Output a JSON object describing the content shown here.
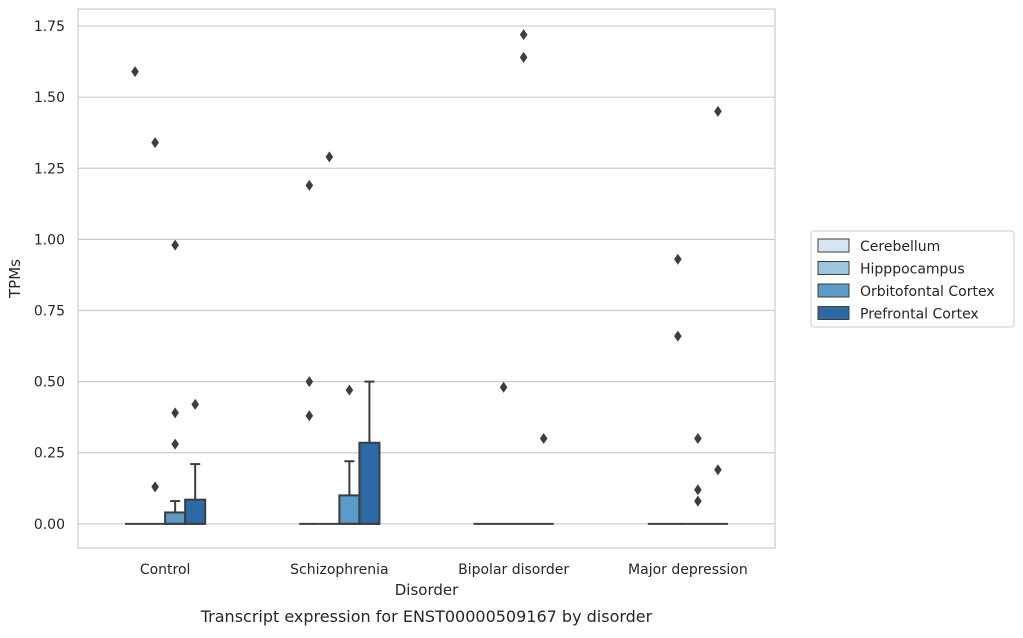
{
  "chart_data": {
    "type": "box",
    "xlabel": "Disorder",
    "ylabel": "TPMs",
    "caption": "Transcript expression for ENST00000509167 by disorder",
    "ylim": [
      -0.085,
      1.81
    ],
    "yticks": [
      "0.00",
      "0.25",
      "0.50",
      "0.75",
      "1.00",
      "1.25",
      "1.50",
      "1.75"
    ],
    "ytick_values": [
      0,
      0.25,
      0.5,
      0.75,
      1.0,
      1.25,
      1.5,
      1.75
    ],
    "grid": "horizontal",
    "legend_placement": "right",
    "categories": [
      "Control",
      "Schizophrenia",
      "Bipolar disorder",
      "Major depression"
    ],
    "series": [
      {
        "name": "Cerebellum",
        "color": "#d6e5f3",
        "boxes": [
          {
            "q1": 0,
            "median": 0,
            "q3": 0,
            "whisker_low": 0,
            "whisker_high": 0,
            "outliers": [
              1.59
            ]
          },
          {
            "q1": 0,
            "median": 0,
            "q3": 0,
            "whisker_low": 0,
            "whisker_high": 0,
            "outliers": [
              0.38,
              0.5,
              1.19
            ]
          },
          {
            "q1": 0,
            "median": 0,
            "q3": 0,
            "whisker_low": 0,
            "whisker_high": 0,
            "outliers": []
          },
          {
            "q1": 0,
            "median": 0,
            "q3": 0,
            "whisker_low": 0,
            "whisker_high": 0,
            "outliers": []
          }
        ]
      },
      {
        "name": "Hipppocampus",
        "color": "#9cc6df",
        "boxes": [
          {
            "q1": 0,
            "median": 0,
            "q3": 0,
            "whisker_low": 0,
            "whisker_high": 0,
            "outliers": [
              0.13,
              1.34
            ]
          },
          {
            "q1": 0,
            "median": 0,
            "q3": 0,
            "whisker_low": 0,
            "whisker_high": 0,
            "outliers": [
              1.29
            ]
          },
          {
            "q1": 0,
            "median": 0,
            "q3": 0,
            "whisker_low": 0,
            "whisker_high": 0,
            "outliers": [
              0.48
            ]
          },
          {
            "q1": 0,
            "median": 0,
            "q3": 0,
            "whisker_low": 0,
            "whisker_high": 0,
            "outliers": [
              0.66,
              0.93
            ]
          }
        ]
      },
      {
        "name": "Orbitofontal Cortex",
        "color": "#5a9bc7",
        "boxes": [
          {
            "q1": 0,
            "median": 0,
            "q3": 0.04,
            "whisker_low": 0,
            "whisker_high": 0.08,
            "outliers": [
              0.28,
              0.39,
              0.98
            ]
          },
          {
            "q1": 0,
            "median": 0,
            "q3": 0.1,
            "whisker_low": 0,
            "whisker_high": 0.22,
            "outliers": [
              0.47
            ]
          },
          {
            "q1": 0,
            "median": 0,
            "q3": 0,
            "whisker_low": 0,
            "whisker_high": 0,
            "outliers": [
              1.64,
              1.72
            ]
          },
          {
            "q1": 0,
            "median": 0,
            "q3": 0,
            "whisker_low": 0,
            "whisker_high": 0,
            "outliers": [
              0.08,
              0.12,
              0.3
            ]
          }
        ]
      },
      {
        "name": "Prefrontal Cortex",
        "color": "#2c6aa5",
        "boxes": [
          {
            "q1": 0,
            "median": 0,
            "q3": 0.085,
            "whisker_low": 0,
            "whisker_high": 0.21,
            "outliers": [
              0.42
            ]
          },
          {
            "q1": 0,
            "median": 0,
            "q3": 0.285,
            "whisker_low": 0,
            "whisker_high": 0.5,
            "outliers": []
          },
          {
            "q1": 0,
            "median": 0,
            "q3": 0,
            "whisker_low": 0,
            "whisker_high": 0,
            "outliers": [
              0.3
            ]
          },
          {
            "q1": 0,
            "median": 0,
            "q3": 0,
            "whisker_low": 0,
            "whisker_high": 0,
            "outliers": [
              0.19,
              1.45
            ]
          }
        ]
      }
    ]
  }
}
